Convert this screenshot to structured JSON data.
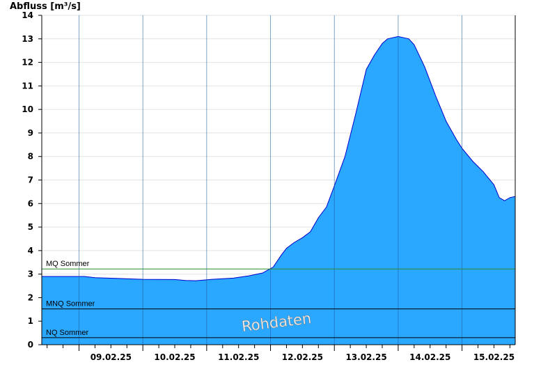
{
  "chart_data": {
    "type": "area",
    "ylabel": "Abfluss [m³/s]",
    "ylim": [
      0,
      14
    ],
    "yticks": [
      0,
      1,
      2,
      3,
      4,
      5,
      6,
      7,
      8,
      9,
      10,
      11,
      12,
      13,
      14
    ],
    "xlim": [
      "2025-02-08T10:00",
      "2025-02-15T20:00"
    ],
    "xtick_labels": [
      {
        "at": "2025-02-09T12:00",
        "label": "09.02.25"
      },
      {
        "at": "2025-02-10T12:00",
        "label": "10.02.25"
      },
      {
        "at": "2025-02-11T12:00",
        "label": "11.02.25"
      },
      {
        "at": "2025-02-12T12:00",
        "label": "12.02.25"
      },
      {
        "at": "2025-02-13T12:00",
        "label": "13.02.25"
      },
      {
        "at": "2025-02-14T12:00",
        "label": "14.02.25"
      },
      {
        "at": "2025-02-15T12:00",
        "label": "15.02.25"
      }
    ],
    "day_boundaries": [
      "2025-02-09T00:00",
      "2025-02-10T00:00",
      "2025-02-11T00:00",
      "2025-02-12T00:00",
      "2025-02-13T00:00",
      "2025-02-14T00:00",
      "2025-02-15T00:00"
    ],
    "grid": true,
    "fill_color": "#2aa7ff",
    "line_color": "#0000cc",
    "series": [
      {
        "x": [
          "2025-02-08T10:00",
          "2025-02-08T18:00",
          "2025-02-09T02:00",
          "2025-02-09T06:00",
          "2025-02-09T14:00",
          "2025-02-10T00:00",
          "2025-02-10T12:00",
          "2025-02-10T16:00",
          "2025-02-10T20:00",
          "2025-02-11T02:00",
          "2025-02-11T10:00",
          "2025-02-11T16:00",
          "2025-02-11T21:00",
          "2025-02-12T01:00",
          "2025-02-12T04:00",
          "2025-02-12T06:00",
          "2025-02-12T09:00",
          "2025-02-12T12:00",
          "2025-02-12T15:00",
          "2025-02-12T18:00",
          "2025-02-12T21:00",
          "2025-02-13T00:00",
          "2025-02-13T04:00",
          "2025-02-13T08:00",
          "2025-02-13T12:00",
          "2025-02-13T15:00",
          "2025-02-13T18:00",
          "2025-02-13T20:00",
          "2025-02-14T00:00",
          "2025-02-14T04:00",
          "2025-02-14T06:00",
          "2025-02-14T10:00",
          "2025-02-14T14:00",
          "2025-02-14T18:00",
          "2025-02-14T22:00",
          "2025-02-15T00:00",
          "2025-02-15T04:00",
          "2025-02-15T08:00",
          "2025-02-15T12:00",
          "2025-02-15T14:00",
          "2025-02-15T16:00",
          "2025-02-15T18:00",
          "2025-02-15T20:00"
        ],
        "y": [
          2.9,
          2.9,
          2.9,
          2.85,
          2.82,
          2.78,
          2.77,
          2.73,
          2.72,
          2.78,
          2.83,
          2.93,
          3.05,
          3.3,
          3.8,
          4.1,
          4.35,
          4.55,
          4.8,
          5.4,
          5.85,
          6.75,
          8.0,
          9.8,
          11.7,
          12.3,
          12.8,
          13.0,
          13.1,
          13.0,
          12.75,
          11.8,
          10.6,
          9.5,
          8.7,
          8.35,
          7.8,
          7.35,
          6.8,
          6.25,
          6.12,
          6.25,
          6.3
        ]
      }
    ],
    "reference_lines": [
      {
        "label": "MQ Sommer",
        "value": 3.22,
        "color": "#2e8b2e"
      },
      {
        "label": "MNQ Sommer",
        "value": 1.52,
        "color": "#000000"
      },
      {
        "label": "NQ Sommer",
        "value": 0.3,
        "color": "#000000"
      }
    ],
    "watermark": "Rohdaten"
  }
}
